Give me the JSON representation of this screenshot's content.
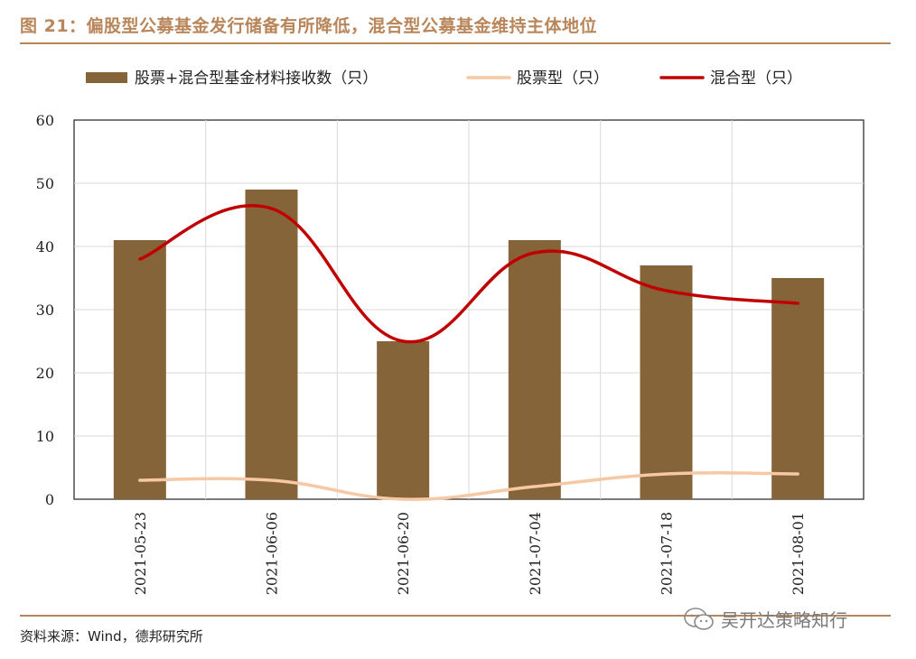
{
  "figure": {
    "title": "图 21：偏股型公募基金发行储备有所降低，混合型公募基金维持主体地位",
    "source": "资料来源：Wind，德邦研究所",
    "watermark": "吴开达策略知行"
  },
  "colors": {
    "title": "#b8865a",
    "bar": "#86643a",
    "stock_line": "#f6c8a4",
    "hybrid_line": "#c00000",
    "grid": "#d9d9d9",
    "plot_border": "#222222"
  },
  "chart_data": {
    "type": "bar",
    "categories": [
      "2021-05-23",
      "2021-06-06",
      "2021-06-20",
      "2021-07-04",
      "2021-07-18",
      "2021-08-01"
    ],
    "ylim": [
      0,
      60
    ],
    "yticks": [
      0,
      10,
      20,
      30,
      40,
      50,
      60
    ],
    "grid": true,
    "legend_position": "top",
    "series": [
      {
        "name": "股票+混合型基金材料接收数（只）",
        "type": "bar",
        "values": [
          41,
          49,
          25,
          41,
          37,
          35
        ]
      },
      {
        "name": "股票型（只）",
        "type": "line",
        "values": [
          3,
          3,
          0,
          2,
          4,
          4
        ]
      },
      {
        "name": "混合型（只）",
        "type": "line",
        "values": [
          38,
          46,
          25,
          39,
          33,
          31
        ]
      }
    ]
  }
}
